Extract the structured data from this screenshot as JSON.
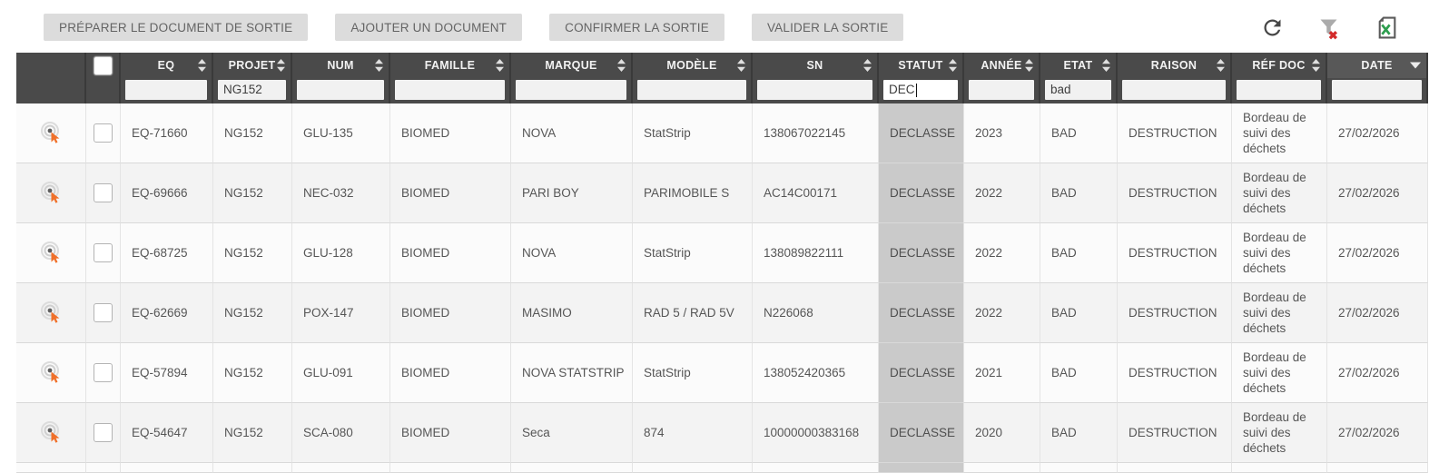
{
  "toolbar": {
    "buttons": [
      {
        "label": "PRÉPARER LE DOCUMENT DE SORTIE"
      },
      {
        "label": "AJOUTER UN DOCUMENT"
      },
      {
        "label": "CONFIRMER LA SORTIE"
      },
      {
        "label": "VALIDER LA SORTIE"
      }
    ],
    "icons": [
      {
        "name": "refresh-icon"
      },
      {
        "name": "clear-filter-icon"
      },
      {
        "name": "export-excel-icon"
      }
    ]
  },
  "colors": {
    "header_bg": "#4a4a4a",
    "sorted_header_bg": "#585858",
    "statut_cell_bg": "#cacaca",
    "accent_orange": "#f0702a",
    "excel_green": "#2e9e4f",
    "clear_filter_red": "#d32b2b"
  },
  "table": {
    "select_all_checked": false,
    "columns": [
      {
        "id": "eq",
        "label": "EQ",
        "sort": "none",
        "filter": ""
      },
      {
        "id": "projet",
        "label": "PROJET",
        "sort": "none",
        "filter": "NG152"
      },
      {
        "id": "num",
        "label": "NUM",
        "sort": "none",
        "filter": ""
      },
      {
        "id": "famille",
        "label": "FAMILLE",
        "sort": "none",
        "filter": ""
      },
      {
        "id": "marque",
        "label": "MARQUE",
        "sort": "none",
        "filter": ""
      },
      {
        "id": "modele",
        "label": "MODÈLE",
        "sort": "none",
        "filter": ""
      },
      {
        "id": "sn",
        "label": "SN",
        "sort": "none",
        "filter": ""
      },
      {
        "id": "statut",
        "label": "STATUT",
        "sort": "none",
        "filter": "DEC",
        "filter_focused": true
      },
      {
        "id": "annee",
        "label": "ANNÉE",
        "sort": "none",
        "filter": ""
      },
      {
        "id": "etat",
        "label": "ETAT",
        "sort": "none",
        "filter": "bad"
      },
      {
        "id": "raison",
        "label": "RAISON",
        "sort": "none",
        "filter": ""
      },
      {
        "id": "refdoc",
        "label": "RÉF DOC",
        "sort": "none",
        "filter": ""
      },
      {
        "id": "date",
        "label": "DATE",
        "sort": "desc",
        "filter": ""
      }
    ],
    "rows": [
      {
        "checked": false,
        "cells": {
          "eq": "EQ-71660",
          "projet": "NG152",
          "num": "GLU-135",
          "famille": "BIOMED",
          "marque": "NOVA",
          "modele": "StatStrip",
          "sn": "138067022145",
          "statut": "DECLASSE",
          "annee": "2023",
          "etat": "BAD",
          "raison": "DESTRUCTION",
          "refdoc": "Bordeau de suivi des déchets",
          "date": "27/02/2026"
        }
      },
      {
        "checked": false,
        "cells": {
          "eq": "EQ-69666",
          "projet": "NG152",
          "num": "NEC-032",
          "famille": "BIOMED",
          "marque": "PARI BOY",
          "modele": "PARIMOBILE S",
          "sn": "AC14C00171",
          "statut": "DECLASSE",
          "annee": "2022",
          "etat": "BAD",
          "raison": "DESTRUCTION",
          "refdoc": "Bordeau de suivi des déchets",
          "date": "27/02/2026"
        }
      },
      {
        "checked": false,
        "cells": {
          "eq": "EQ-68725",
          "projet": "NG152",
          "num": "GLU-128",
          "famille": "BIOMED",
          "marque": "NOVA",
          "modele": "StatStrip",
          "sn": "138089822111",
          "statut": "DECLASSE",
          "annee": "2022",
          "etat": "BAD",
          "raison": "DESTRUCTION",
          "refdoc": "Bordeau de suivi des déchets",
          "date": "27/02/2026"
        }
      },
      {
        "checked": false,
        "cells": {
          "eq": "EQ-62669",
          "projet": "NG152",
          "num": "POX-147",
          "famille": "BIOMED",
          "marque": "MASIMO",
          "modele": "RAD 5 / RAD 5V",
          "sn": "N226068",
          "statut": "DECLASSE",
          "annee": "2022",
          "etat": "BAD",
          "raison": "DESTRUCTION",
          "refdoc": "Bordeau de suivi des déchets",
          "date": "27/02/2026"
        }
      },
      {
        "checked": false,
        "cells": {
          "eq": "EQ-57894",
          "projet": "NG152",
          "num": "GLU-091",
          "famille": "BIOMED",
          "marque": "NOVA STATSTRIP",
          "modele": "StatStrip",
          "sn": "138052420365",
          "statut": "DECLASSE",
          "annee": "2021",
          "etat": "BAD",
          "raison": "DESTRUCTION",
          "refdoc": "Bordeau de suivi des déchets",
          "date": "27/02/2026"
        }
      },
      {
        "checked": false,
        "cells": {
          "eq": "EQ-54647",
          "projet": "NG152",
          "num": "SCA-080",
          "famille": "BIOMED",
          "marque": "Seca",
          "modele": "874",
          "sn": "10000000383168",
          "statut": "DECLASSE",
          "annee": "2020",
          "etat": "BAD",
          "raison": "DESTRUCTION",
          "refdoc": "Bordeau de suivi des déchets",
          "date": "27/02/2026"
        }
      }
    ]
  }
}
